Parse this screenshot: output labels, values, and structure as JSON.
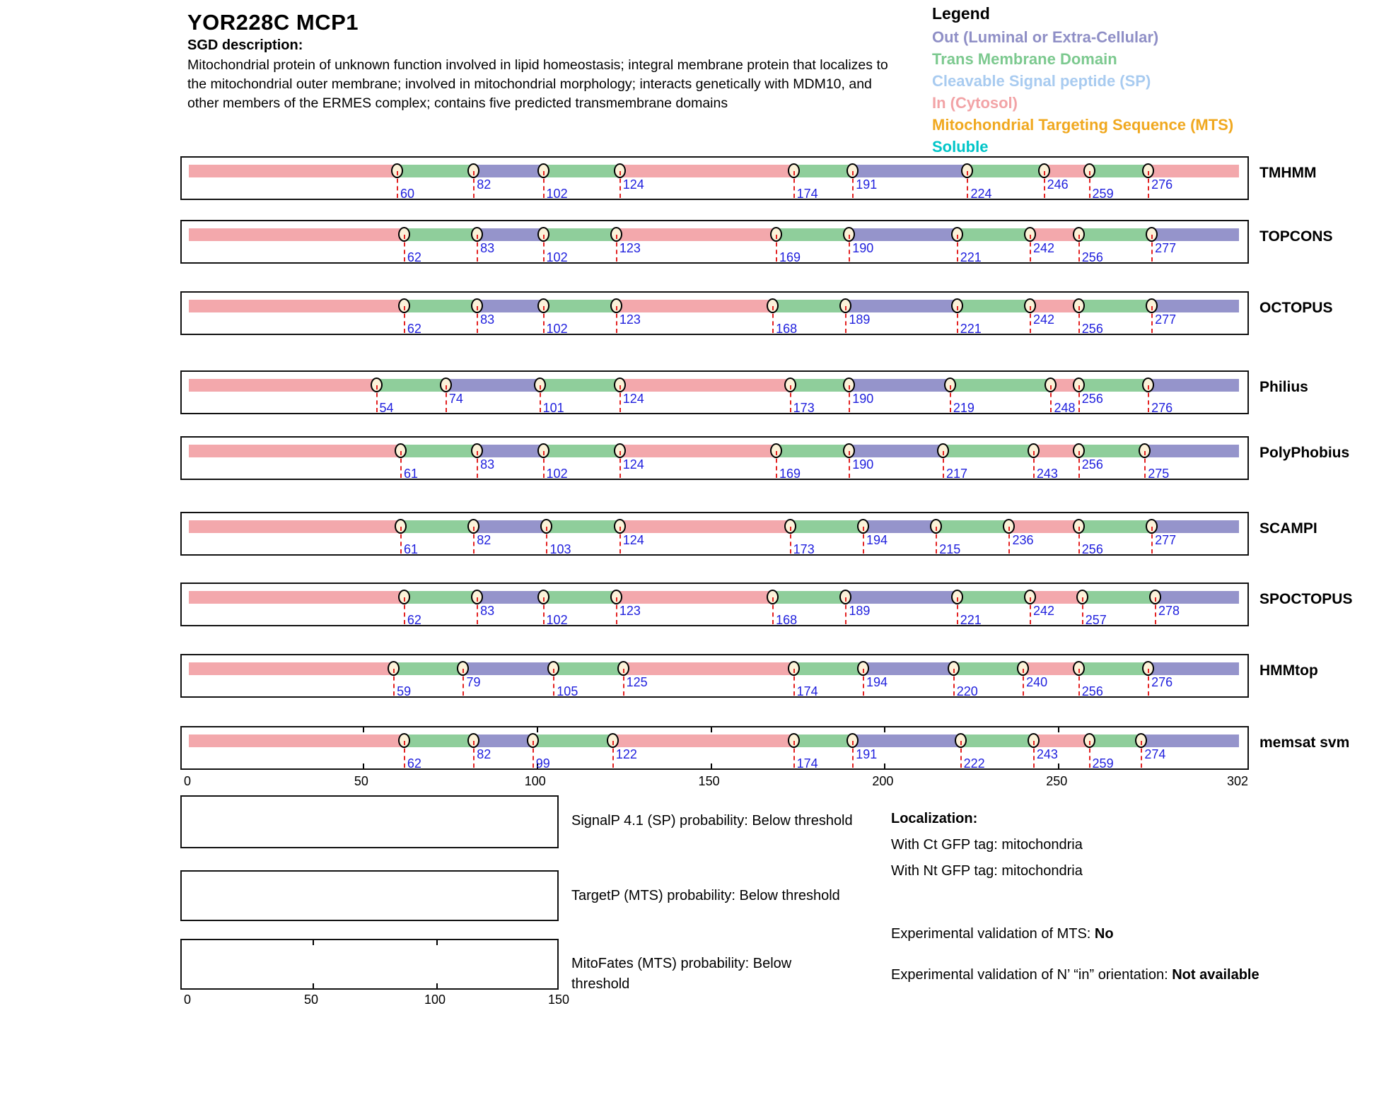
{
  "header": {
    "title": "YOR228C  MCP1",
    "sgd_label": "SGD description:",
    "description": "Mitochondrial protein of unknown function involved in lipid homeostasis; integral membrane protein that localizes to the mitochondrial outer membrane; involved in mitochondrial morphology; interacts genetically with MDM10, and other members of the ERMES complex; contains five predicted transmembrane domains"
  },
  "legend": {
    "title": "Legend",
    "items": [
      {
        "label": "Out (Luminal or Extra-Cellular)",
        "color": "#8f8fc6"
      },
      {
        "label": "Trans Membrane Domain",
        "color": "#7cc98f"
      },
      {
        "label": "Cleavable Signal peptide (SP)",
        "color": "#a8cbf0"
      },
      {
        "label": "In (Cytosol)",
        "color": "#f2a3a6"
      },
      {
        "label": "Mitochondrial Targeting Sequence (MTS)",
        "color": "#f0a81f"
      },
      {
        "label": "Soluble",
        "color": "#00c5c8"
      }
    ]
  },
  "chart_data": {
    "type": "topology-tracks",
    "sequence_length": 302,
    "axis_ticks": [
      0,
      50,
      100,
      150,
      200,
      250,
      302
    ],
    "region_colors": {
      "in": "#f3a8ac",
      "tm": "#8fce9b",
      "out": "#9594cb"
    },
    "region_types_order": [
      "in",
      "tm",
      "out",
      "tm",
      "in",
      "tm",
      "out",
      "tm",
      "in",
      "tm"
    ],
    "region_legend": {
      "in": "In (Cytosol)",
      "tm": "Trans Membrane Domain",
      "out": "Out (Luminal or Extra-Cellular)"
    },
    "methods": [
      {
        "name": "TMHMM",
        "boundaries": [
          60,
          82,
          102,
          124,
          174,
          191,
          224,
          246,
          259,
          276
        ],
        "final_region": "in",
        "label_levels": [
          "low",
          "high",
          "low",
          "high",
          "low",
          "high",
          "low",
          "high",
          "low",
          "high"
        ]
      },
      {
        "name": "TOPCONS",
        "boundaries": [
          62,
          83,
          102,
          123,
          169,
          190,
          221,
          242,
          256,
          277
        ],
        "final_region": "out",
        "label_levels": [
          "low",
          "high",
          "low",
          "high",
          "low",
          "high",
          "low",
          "high",
          "low",
          "high"
        ]
      },
      {
        "name": "OCTOPUS",
        "boundaries": [
          62,
          83,
          102,
          123,
          168,
          189,
          221,
          242,
          256,
          277
        ],
        "final_region": "out",
        "label_levels": [
          "low",
          "high",
          "low",
          "high",
          "low",
          "high",
          "low",
          "high",
          "low",
          "high"
        ]
      },
      {
        "name": "Philius",
        "boundaries": [
          54,
          74,
          101,
          124,
          173,
          190,
          219,
          248,
          256,
          276
        ],
        "final_region": "out",
        "label_levels": [
          "low",
          "high",
          "low",
          "high",
          "low",
          "high",
          "low",
          "low",
          "high",
          "low"
        ]
      },
      {
        "name": "PolyPhobius",
        "boundaries": [
          61,
          83,
          102,
          124,
          169,
          190,
          217,
          243,
          256,
          275
        ],
        "final_region": "out",
        "label_levels": [
          "low",
          "high",
          "low",
          "high",
          "low",
          "high",
          "low",
          "low",
          "high",
          "low"
        ]
      },
      {
        "name": "SCAMPI",
        "boundaries": [
          61,
          82,
          103,
          124,
          173,
          194,
          215,
          236,
          256,
          277
        ],
        "final_region": "out",
        "label_levels": [
          "low",
          "high",
          "low",
          "high",
          "low",
          "high",
          "low",
          "high",
          "low",
          "high"
        ]
      },
      {
        "name": "SPOCTOPUS",
        "boundaries": [
          62,
          83,
          102,
          123,
          168,
          189,
          221,
          242,
          257,
          278
        ],
        "final_region": "out",
        "label_levels": [
          "low",
          "high",
          "low",
          "high",
          "low",
          "high",
          "low",
          "high",
          "low",
          "high"
        ]
      },
      {
        "name": "HMMtop",
        "boundaries": [
          59,
          79,
          105,
          125,
          174,
          194,
          220,
          240,
          256,
          276
        ],
        "final_region": "out",
        "label_levels": [
          "low",
          "high",
          "low",
          "high",
          "low",
          "high",
          "low",
          "high",
          "low",
          "high"
        ]
      },
      {
        "name": "memsat svm",
        "boundaries": [
          62,
          82,
          99,
          122,
          174,
          191,
          222,
          243,
          259,
          274
        ],
        "final_region": "out",
        "label_levels": [
          "low",
          "high",
          "low",
          "high",
          "low",
          "high",
          "low",
          "high",
          "low",
          "high"
        ]
      }
    ]
  },
  "probability_panels": [
    {
      "label": "SignalP 4.1 (SP) probability: Below threshold"
    },
    {
      "label": "TargetP (MTS) probability: Below threshold"
    },
    {
      "label": "MitoFates (MTS) probability: Below threshold",
      "axis_ticks": [
        0,
        50,
        100,
        150
      ]
    }
  ],
  "localization": {
    "title": "Localization:",
    "ct_line": "With Ct GFP tag: mitochondria",
    "nt_line": "With Nt GFP tag: mitochondria",
    "mts_label": "Experimental validation of MTS: ",
    "mts_value": "No",
    "orientation_label": "Experimental validation of N’ “in” orientation: ",
    "orientation_value": "Not available"
  }
}
